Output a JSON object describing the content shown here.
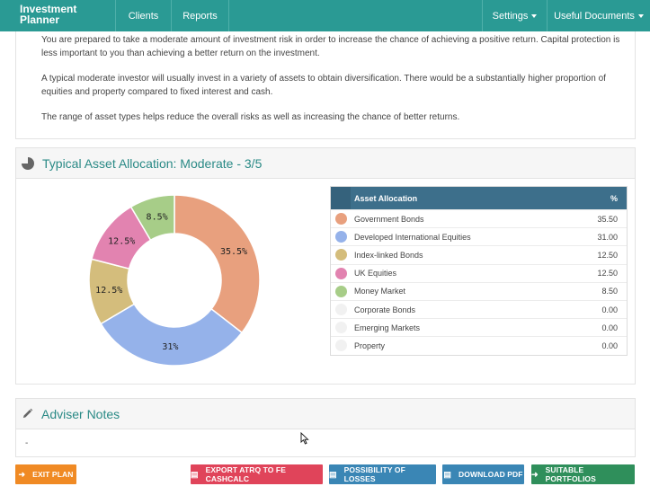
{
  "navbar": {
    "brand_line1": "Investment",
    "brand_line2": "Planner",
    "clients": "Clients",
    "reports": "Reports",
    "settings": "Settings",
    "useful_documents": "Useful Documents"
  },
  "intro": {
    "para1": "You are prepared to take a moderate amount of investment risk in order to increase the chance of achieving a positive return. Capital protection is less important to you than achieving a better return on the investment.",
    "para2": "A typical moderate investor will usually invest in a variety of assets to obtain diversification. There would be a substantially higher proportion of equities and property compared to fixed interest and cash.",
    "para3": "The range of asset types helps reduce the overall risks as well as increasing the chance of better returns."
  },
  "allocation": {
    "title": "Typical Asset Allocation: Moderate - 3/5",
    "icon": "pie-chart-icon",
    "table_header": {
      "name": "Asset Allocation",
      "pct": "%"
    },
    "rows": [
      {
        "name": "Government Bonds",
        "value": "35.50",
        "color": "#e8a07e"
      },
      {
        "name": "Developed International Equities",
        "value": "31.00",
        "color": "#95b2ea"
      },
      {
        "name": "Index-linked Bonds",
        "value": "12.50",
        "color": "#d4bd7c"
      },
      {
        "name": "UK Equities",
        "value": "12.50",
        "color": "#e283b0"
      },
      {
        "name": "Money Market",
        "value": "8.50",
        "color": "#a7cd88"
      },
      {
        "name": "Corporate Bonds",
        "value": "0.00",
        "color": "#f1f1f1"
      },
      {
        "name": "Emerging Markets",
        "value": "0.00",
        "color": "#f1f1f1"
      },
      {
        "name": "Property",
        "value": "0.00",
        "color": "#f1f1f1"
      }
    ]
  },
  "chart_data": {
    "type": "pie",
    "categories": [
      "Government Bonds",
      "Developed International Equities",
      "Index-linked Bonds",
      "UK Equities",
      "Money Market"
    ],
    "values": [
      35.5,
      31,
      12.5,
      12.5,
      8.5
    ],
    "labels": [
      "35.5%",
      "31%",
      "12.5%",
      "12.5%",
      "8.5%"
    ],
    "colors": [
      "#e8a07e",
      "#95b2ea",
      "#d4bd7c",
      "#e283b0",
      "#a7cd88"
    ],
    "donut": true
  },
  "notes": {
    "title": "Adviser Notes",
    "icon": "pencil-icon",
    "body": "-"
  },
  "buttons": {
    "exit": "EXIT PLAN",
    "export": "EXPORT ATRQ TO FE CASHCALC",
    "losses": "POSSIBILITY OF LOSSES",
    "pdf": "DOWNLOAD PDF",
    "suitable": "SUITABLE PORTFOLIOS"
  }
}
